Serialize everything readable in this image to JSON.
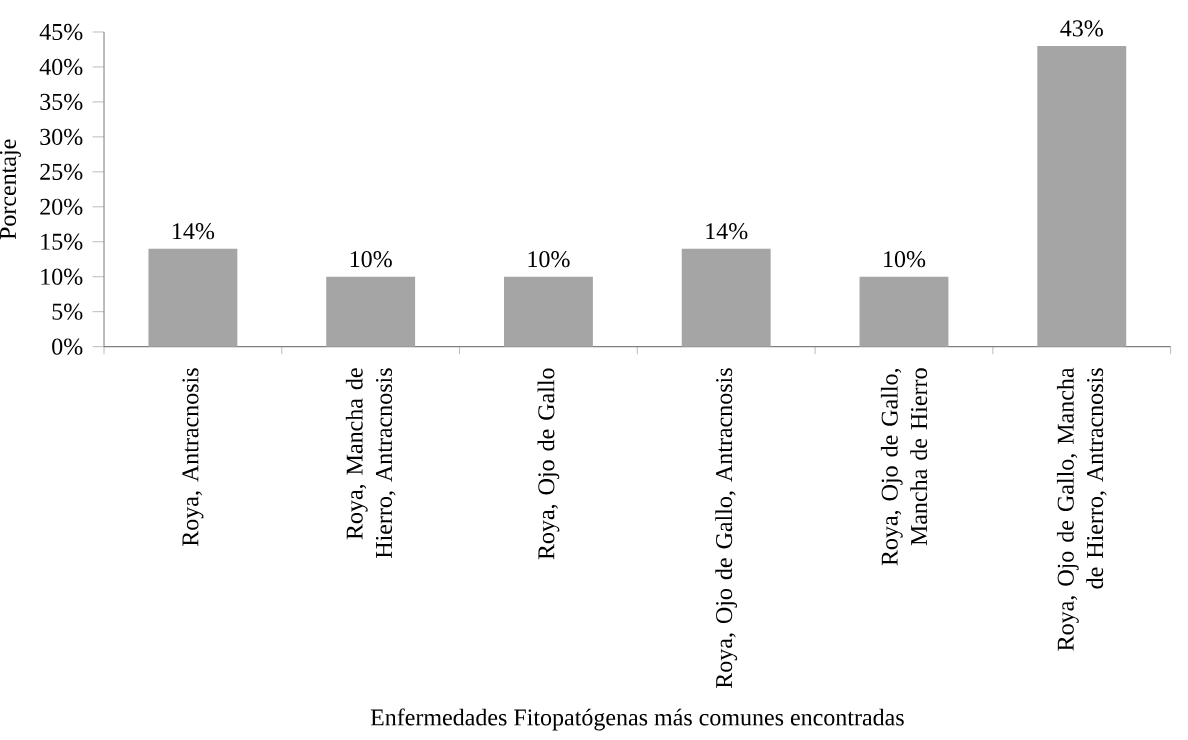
{
  "chart_data": {
    "type": "bar",
    "xlabel": "Enfermedades Fitopatógenas más comunes encontradas",
    "ylabel": "Porcentaje",
    "categories": [
      "Roya, Antracnosis",
      "Roya, Mancha de Hierro, Antracnosis",
      "Roya, Ojo de Gallo",
      "Roya, Ojo de Gallo, Antracnosis",
      "Roya, Ojo de Gallo, Mancha de Hierro",
      "Roya, Ojo de Gallo, Mancha de Hierro, Antracnosis"
    ],
    "values": [
      14,
      10,
      10,
      14,
      10,
      43
    ],
    "value_labels": [
      "14%",
      "10%",
      "10%",
      "14%",
      "10%",
      "43%"
    ],
    "color": "#a5a5a5",
    "ylim": [
      0,
      45
    ],
    "yticks": [
      {
        "value": 0,
        "label": "0%"
      },
      {
        "value": 5,
        "label": "5%"
      },
      {
        "value": 10,
        "label": "10%"
      },
      {
        "value": 15,
        "label": "15%"
      },
      {
        "value": 20,
        "label": "20%"
      },
      {
        "value": 25,
        "label": "25%"
      },
      {
        "value": 30,
        "label": "30%"
      },
      {
        "value": 35,
        "label": "35%"
      },
      {
        "value": 40,
        "label": "40%"
      },
      {
        "value": 45,
        "label": "45%"
      }
    ]
  }
}
